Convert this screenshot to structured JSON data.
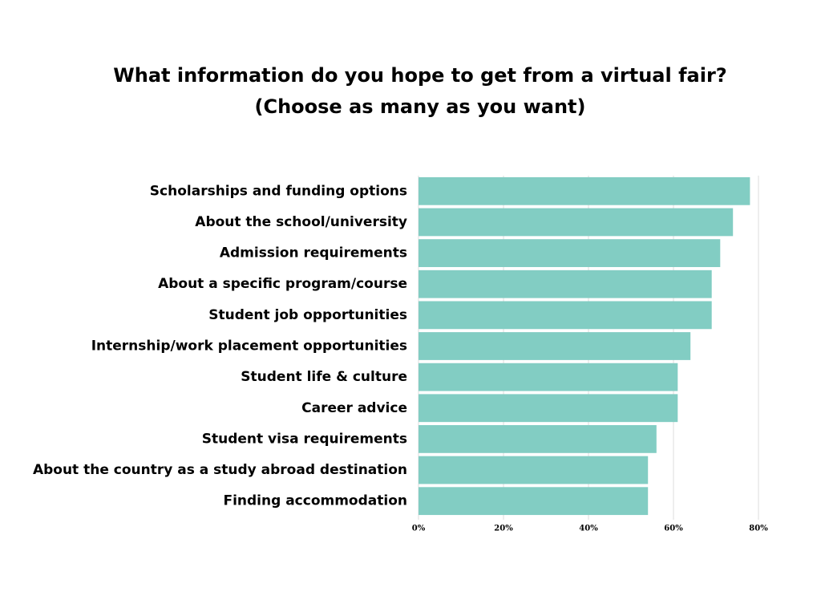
{
  "chart_data": {
    "type": "bar",
    "orientation": "horizontal",
    "title": "What information do you hope to get from a virtual fair?",
    "subtitle": "(Choose as many as you want)",
    "categories": [
      "Scholarships and funding options",
      "About the school/university",
      "Admission requirements",
      "About a specific program/course",
      "Student job opportunities",
      "Internship/work placement opportunities",
      "Student life & culture",
      "Career advice",
      "Student visa requirements",
      "About the country as a study abroad destination",
      "Finding accommodation"
    ],
    "values": [
      78,
      74,
      71,
      69,
      69,
      64,
      61,
      61,
      56,
      54,
      54
    ],
    "color": "#82cdc3",
    "xlim": [
      0,
      80
    ],
    "xticks": [
      {
        "value": 0,
        "label": "0%"
      },
      {
        "value": 20,
        "label": "20%"
      },
      {
        "value": 40,
        "label": "40%"
      },
      {
        "value": 60,
        "label": "60%"
      },
      {
        "value": 80,
        "label": "80%"
      }
    ],
    "grid": true
  }
}
